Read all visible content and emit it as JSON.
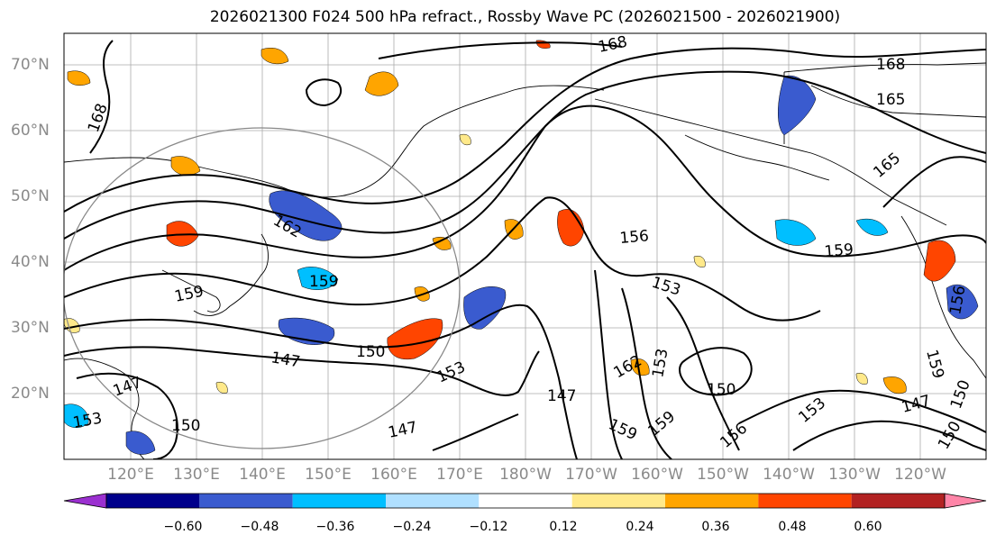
{
  "title": "2026021300 F024 500 hPa refract., Rossby Wave PC (2026021500 - 2026021900)",
  "lat_labels": [
    "70°N",
    "60°N",
    "50°N",
    "40°N",
    "30°N",
    "20°N"
  ],
  "lon_labels": [
    "120°E",
    "130°E",
    "140°E",
    "150°E",
    "160°E",
    "170°E",
    "180°W",
    "170°W",
    "160°W",
    "150°W",
    "140°W",
    "130°W",
    "120°W"
  ],
  "colorbar": {
    "ticks": [
      "−0.60",
      "−0.48",
      "−0.36",
      "−0.24",
      "−0.12",
      "0.12",
      "0.24",
      "0.36",
      "0.48",
      "0.60"
    ],
    "colors": [
      "#9b30d0",
      "#00008b",
      "#3a5bcf",
      "#00bfff",
      "#b0e0ff",
      "#ffffff",
      "#ffe98a",
      "#ffa500",
      "#ff4500",
      "#b22222",
      "#ff85a8"
    ]
  },
  "contour_labels": [
    "168",
    "168",
    "165",
    "165",
    "168",
    "162",
    "159",
    "159",
    "156",
    "159",
    "153",
    "150",
    "147",
    "147",
    "147",
    "153",
    "147",
    "159",
    "162",
    "159",
    "153",
    "150",
    "156",
    "153",
    "147",
    "150",
    "150",
    "156",
    "159",
    "153",
    "150"
  ],
  "circle_label": ""
}
